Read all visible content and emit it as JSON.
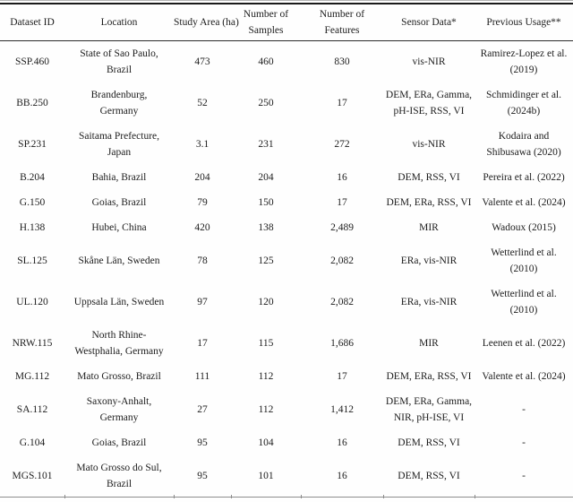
{
  "table": {
    "headers": [
      "Dataset ID",
      "Location",
      "Study Area (ha)",
      "Number of\nSamples",
      "Number of\nFeatures",
      "Sensor Data*",
      "Previous Usage**"
    ],
    "rows": [
      {
        "dataset_id": "SSP.460",
        "location": "State of Sao Paulo,\nBrazil",
        "study_area_ha": "473",
        "num_samples": "460",
        "num_features": "830",
        "sensor_data": "vis-NIR",
        "previous_usage": "Ramirez-Lopez et al.\n(2019)"
      },
      {
        "dataset_id": "BB.250",
        "location": "Brandenburg,\nGermany",
        "study_area_ha": "52",
        "num_samples": "250",
        "num_features": "17",
        "sensor_data": "DEM, ERa, Gamma,\npH-ISE, RSS, VI",
        "previous_usage": "Schmidinger et al.\n(2024b)"
      },
      {
        "dataset_id": "SP.231",
        "location": "Saitama Prefecture,\nJapan",
        "study_area_ha": "3.1",
        "num_samples": "231",
        "num_features": "272",
        "sensor_data": "vis-NIR",
        "previous_usage": "Kodaira and\nShibusawa (2020)"
      },
      {
        "dataset_id": "B.204",
        "location": "Bahia, Brazil",
        "study_area_ha": "204",
        "num_samples": "204",
        "num_features": "16",
        "sensor_data": "DEM, RSS, VI",
        "previous_usage": "Pereira et al. (2022)"
      },
      {
        "dataset_id": "G.150",
        "location": "Goias, Brazil",
        "study_area_ha": "79",
        "num_samples": "150",
        "num_features": "17",
        "sensor_data": "DEM, ERa, RSS, VI",
        "previous_usage": "Valente et al. (2024)"
      },
      {
        "dataset_id": "H.138",
        "location": "Hubei, China",
        "study_area_ha": "420",
        "num_samples": "138",
        "num_features": "2,489",
        "sensor_data": "MIR",
        "previous_usage": "Wadoux (2015)"
      },
      {
        "dataset_id": "SL.125",
        "location": "Skåne Län, Sweden",
        "study_area_ha": "78",
        "num_samples": "125",
        "num_features": "2,082",
        "sensor_data": "ERa, vis-NIR",
        "previous_usage": "Wetterlind et al.\n(2010)"
      },
      {
        "dataset_id": "UL.120",
        "location": "Uppsala Län, Sweden",
        "study_area_ha": "97",
        "num_samples": "120",
        "num_features": "2,082",
        "sensor_data": "ERa, vis-NIR",
        "previous_usage": "Wetterlind et al.\n(2010)"
      },
      {
        "dataset_id": "NRW.115",
        "location": "North Rhine-\nWestphalia, Germany",
        "study_area_ha": "17",
        "num_samples": "115",
        "num_features": "1,686",
        "sensor_data": "MIR",
        "previous_usage": "Leenen et al. (2022)"
      },
      {
        "dataset_id": "MG.112",
        "location": "Mato Grosso, Brazil",
        "study_area_ha": "111",
        "num_samples": "112",
        "num_features": "17",
        "sensor_data": "DEM, ERa, RSS, VI",
        "previous_usage": "Valente et al. (2024)"
      },
      {
        "dataset_id": "SA.112",
        "location": "Saxony-Anhalt,\nGermany",
        "study_area_ha": "27",
        "num_samples": "112",
        "num_features": "1,412",
        "sensor_data": "DEM, ERa, Gamma,\nNIR, pH-ISE, VI",
        "previous_usage": "-"
      },
      {
        "dataset_id": "G.104",
        "location": "Goias, Brazil",
        "study_area_ha": "95",
        "num_samples": "104",
        "num_features": "16",
        "sensor_data": "DEM, RSS, VI",
        "previous_usage": "-"
      },
      {
        "dataset_id": "MGS.101",
        "location": "Mato Grosso do Sul,\nBrazil",
        "study_area_ha": "95",
        "num_samples": "101",
        "num_features": "16",
        "sensor_data": "DEM, RSS, VI",
        "previous_usage": "-"
      }
    ]
  }
}
